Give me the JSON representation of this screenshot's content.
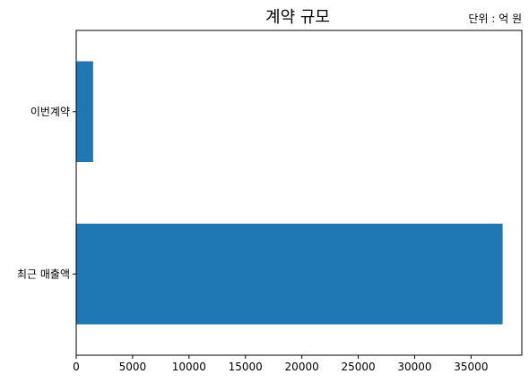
{
  "chart_data": {
    "type": "bar",
    "orientation": "horizontal",
    "title": "계약 규모",
    "unit_note": "단위 : 억 원",
    "categories": [
      "최근 매출액",
      "이번계약"
    ],
    "values": [
      37800,
      1500
    ],
    "xlim": [
      0,
      39500
    ],
    "xticks": [
      0,
      5000,
      10000,
      15000,
      20000,
      25000,
      30000,
      35000
    ],
    "xlabel": "",
    "ylabel": "",
    "grid": false,
    "legend": "none",
    "bar_color": "#1f77b4"
  }
}
